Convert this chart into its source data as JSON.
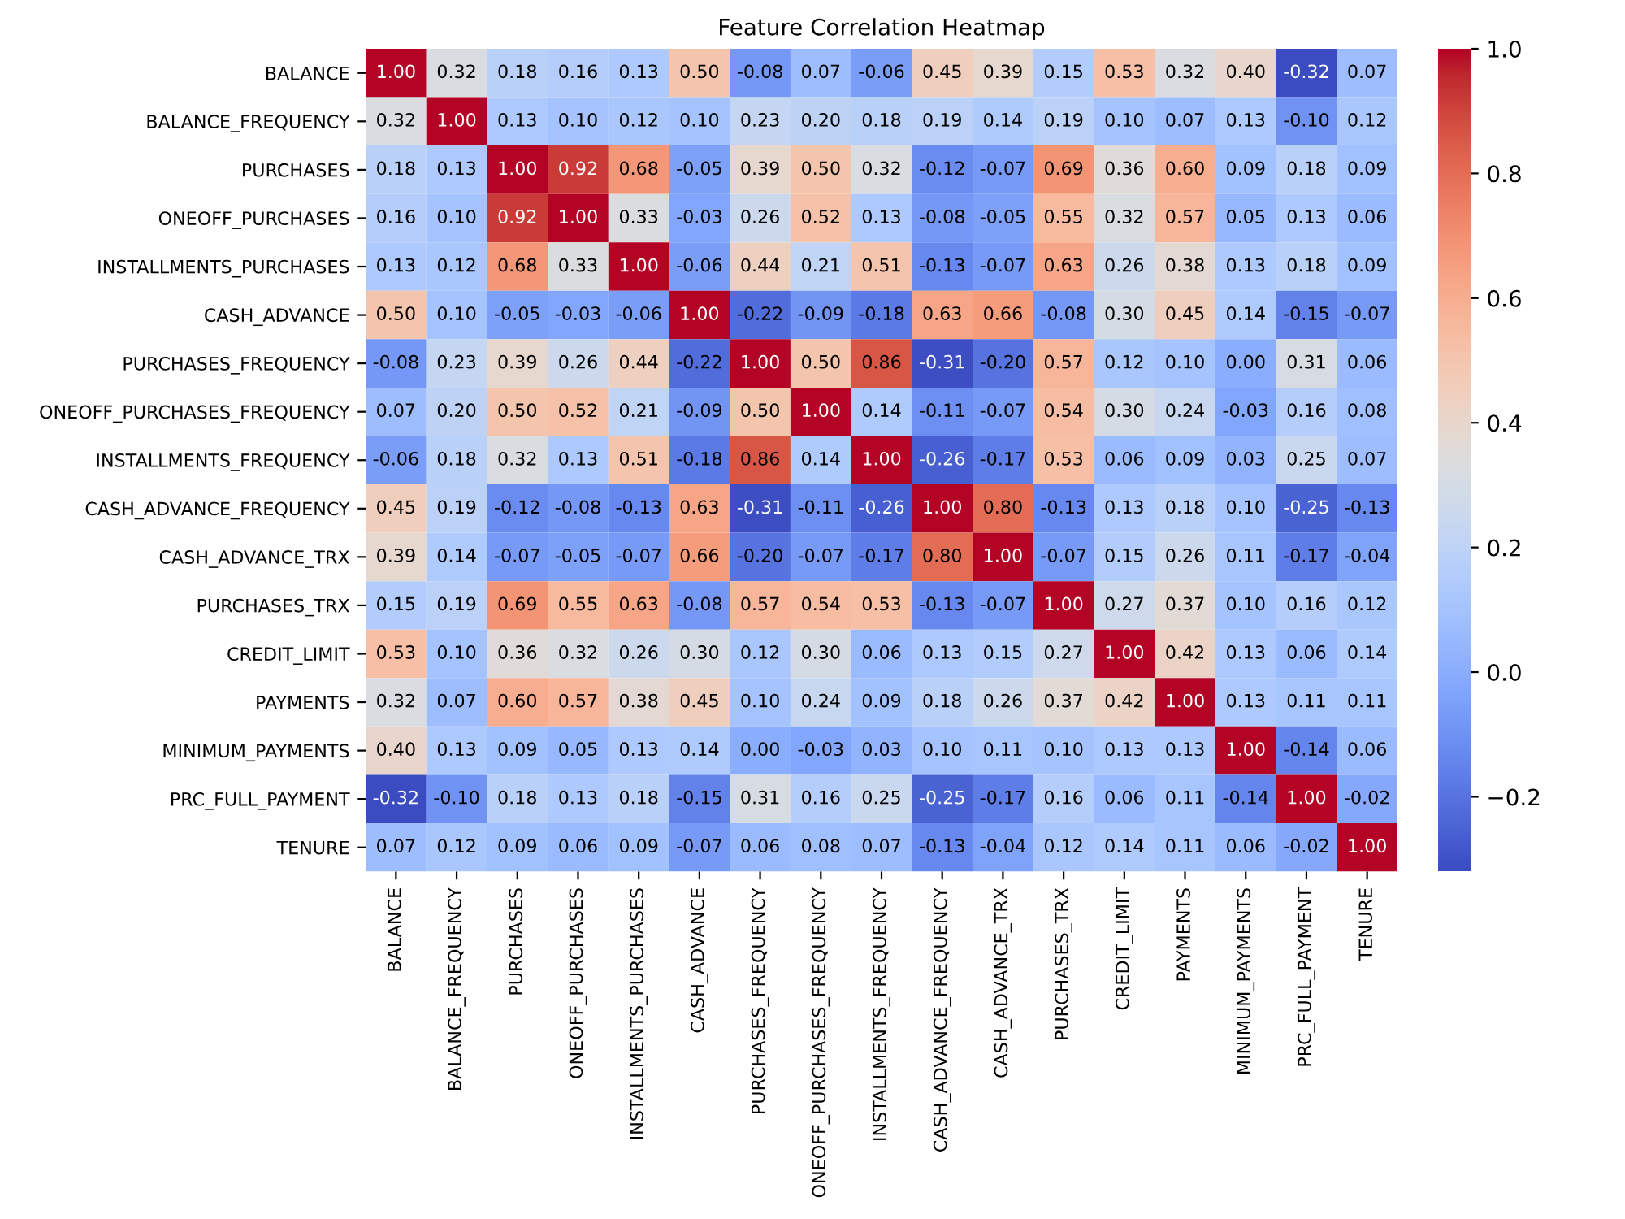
{
  "chart_data": {
    "type": "heatmap",
    "title": "Feature Correlation Heatmap",
    "categories": [
      "BALANCE",
      "BALANCE_FREQUENCY",
      "PURCHASES",
      "ONEOFF_PURCHASES",
      "INSTALLMENTS_PURCHASES",
      "CASH_ADVANCE",
      "PURCHASES_FREQUENCY",
      "ONEOFF_PURCHASES_FREQUENCY",
      "INSTALLMENTS_FREQUENCY",
      "CASH_ADVANCE_FREQUENCY",
      "CASH_ADVANCE_TRX",
      "PURCHASES_TRX",
      "CREDIT_LIMIT",
      "PAYMENTS",
      "MINIMUM_PAYMENTS",
      "PRC_FULL_PAYMENT",
      "TENURE"
    ],
    "y_categories": [
      "BALANCE",
      "BALANCE_FREQUENCY",
      "PURCHASES",
      "ONEOFF_PURCHASES",
      "INSTALLMENTS_PURCHASES",
      "CASH_ADVANCE",
      "PURCHASES_FREQUENCY",
      "ONEOFF_PURCHASES_FREQUENCY",
      "INSTALLMENTS_FREQUENCY",
      "CASH_ADVANCE_FREQUENCY",
      "CASH_ADVANCE_TRX",
      "PURCHASES_TRX",
      "CREDIT_LIMIT",
      "PAYMENTS",
      "MINIMUM_PAYMENTS",
      "PRC_FULL_PAYMENT",
      "TENURE"
    ],
    "cells": [
      [
        1.0,
        0.32,
        0.18,
        0.16,
        0.13,
        0.5,
        -0.08,
        0.07,
        -0.06,
        0.45,
        0.39,
        0.15,
        0.53,
        0.32,
        0.4,
        -0.32,
        0.07
      ],
      [
        0.32,
        1.0,
        0.13,
        0.1,
        0.12,
        0.1,
        0.23,
        0.2,
        0.18,
        0.19,
        0.14,
        0.19,
        0.1,
        0.07,
        0.13,
        -0.1,
        0.12
      ],
      [
        0.18,
        0.13,
        1.0,
        0.92,
        0.68,
        -0.05,
        0.39,
        0.5,
        0.32,
        -0.12,
        -0.07,
        0.69,
        0.36,
        0.6,
        0.09,
        0.18,
        0.09
      ],
      [
        0.16,
        0.1,
        0.92,
        1.0,
        0.33,
        -0.03,
        0.26,
        0.52,
        0.13,
        -0.08,
        -0.05,
        0.55,
        0.32,
        0.57,
        0.05,
        0.13,
        0.06
      ],
      [
        0.13,
        0.12,
        0.68,
        0.33,
        1.0,
        -0.06,
        0.44,
        0.21,
        0.51,
        -0.13,
        -0.07,
        0.63,
        0.26,
        0.38,
        0.13,
        0.18,
        0.09
      ],
      [
        0.5,
        0.1,
        -0.05,
        -0.03,
        -0.06,
        1.0,
        -0.22,
        -0.09,
        -0.18,
        0.63,
        0.66,
        -0.08,
        0.3,
        0.45,
        0.14,
        -0.15,
        -0.07
      ],
      [
        -0.08,
        0.23,
        0.39,
        0.26,
        0.44,
        -0.22,
        1.0,
        0.5,
        0.86,
        -0.31,
        -0.2,
        0.57,
        0.12,
        0.1,
        0.0,
        0.31,
        0.06
      ],
      [
        0.07,
        0.2,
        0.5,
        0.52,
        0.21,
        -0.09,
        0.5,
        1.0,
        0.14,
        -0.11,
        -0.07,
        0.54,
        0.3,
        0.24,
        -0.03,
        0.16,
        0.08
      ],
      [
        -0.06,
        0.18,
        0.32,
        0.13,
        0.51,
        -0.18,
        0.86,
        0.14,
        1.0,
        -0.26,
        -0.17,
        0.53,
        0.06,
        0.09,
        0.03,
        0.25,
        0.07
      ],
      [
        0.45,
        0.19,
        -0.12,
        -0.08,
        -0.13,
        0.63,
        -0.31,
        -0.11,
        -0.26,
        1.0,
        0.8,
        -0.13,
        0.13,
        0.18,
        0.1,
        -0.25,
        -0.13
      ],
      [
        0.39,
        0.14,
        -0.07,
        -0.05,
        -0.07,
        0.66,
        -0.2,
        -0.07,
        -0.17,
        0.8,
        1.0,
        -0.07,
        0.15,
        0.26,
        0.11,
        -0.17,
        -0.04
      ],
      [
        0.15,
        0.19,
        0.69,
        0.55,
        0.63,
        -0.08,
        0.57,
        0.54,
        0.53,
        -0.13,
        -0.07,
        1.0,
        0.27,
        0.37,
        0.1,
        0.16,
        0.12
      ],
      [
        0.53,
        0.1,
        0.36,
        0.32,
        0.26,
        0.3,
        0.12,
        0.3,
        0.06,
        0.13,
        0.15,
        0.27,
        1.0,
        0.42,
        0.13,
        0.06,
        0.14
      ],
      [
        0.32,
        0.07,
        0.6,
        0.57,
        0.38,
        0.45,
        0.1,
        0.24,
        0.09,
        0.18,
        0.26,
        0.37,
        0.42,
        1.0,
        0.13,
        0.11,
        0.11
      ],
      [
        0.4,
        0.13,
        0.09,
        0.05,
        0.13,
        0.14,
        0.0,
        -0.03,
        0.03,
        0.1,
        0.11,
        0.1,
        0.13,
        0.13,
        1.0,
        -0.14,
        0.06
      ],
      [
        -0.32,
        -0.1,
        0.18,
        0.13,
        0.18,
        -0.15,
        0.31,
        0.16,
        0.25,
        -0.25,
        -0.17,
        0.16,
        0.06,
        0.11,
        -0.14,
        1.0,
        -0.02
      ],
      [
        0.07,
        0.12,
        0.09,
        0.06,
        0.09,
        -0.07,
        0.06,
        0.08,
        0.07,
        -0.13,
        -0.04,
        0.12,
        0.14,
        0.11,
        0.06,
        -0.02,
        1.0
      ]
    ],
    "cell_labels": [
      [
        "1.00",
        "0.32",
        "0.18",
        "0.16",
        "0.13",
        "0.50",
        "-0.08",
        "0.07",
        "-0.06",
        "0.45",
        "0.39",
        "0.15",
        "0.53",
        "0.32",
        "0.40",
        "-0.32",
        "0.07"
      ],
      [
        "0.32",
        "1.00",
        "0.13",
        "0.10",
        "0.12",
        "0.10",
        "0.23",
        "0.20",
        "0.18",
        "0.19",
        "0.14",
        "0.19",
        "0.10",
        "0.07",
        "0.13",
        "-0.10",
        "0.12"
      ],
      [
        "0.18",
        "0.13",
        "1.00",
        "0.92",
        "0.68",
        "-0.05",
        "0.39",
        "0.50",
        "0.32",
        "-0.12",
        "-0.07",
        "0.69",
        "0.36",
        "0.60",
        "0.09",
        "0.18",
        "0.09"
      ],
      [
        "0.16",
        "0.10",
        "0.92",
        "1.00",
        "0.33",
        "-0.03",
        "0.26",
        "0.52",
        "0.13",
        "-0.08",
        "-0.05",
        "0.55",
        "0.32",
        "0.57",
        "0.05",
        "0.13",
        "0.06"
      ],
      [
        "0.13",
        "0.12",
        "0.68",
        "0.33",
        "1.00",
        "-0.06",
        "0.44",
        "0.21",
        "0.51",
        "-0.13",
        "-0.07",
        "0.63",
        "0.26",
        "0.38",
        "0.13",
        "0.18",
        "0.09"
      ],
      [
        "0.50",
        "0.10",
        "-0.05",
        "-0.03",
        "-0.06",
        "1.00",
        "-0.22",
        "-0.09",
        "-0.18",
        "0.63",
        "0.66",
        "-0.08",
        "0.30",
        "0.45",
        "0.14",
        "-0.15",
        "-0.07"
      ],
      [
        "-0.08",
        "0.23",
        "0.39",
        "0.26",
        "0.44",
        "-0.22",
        "1.00",
        "0.50",
        "0.86",
        "-0.31",
        "-0.20",
        "0.57",
        "0.12",
        "0.10",
        "0.00",
        "0.31",
        "0.06"
      ],
      [
        "0.07",
        "0.20",
        "0.50",
        "0.52",
        "0.21",
        "-0.09",
        "0.50",
        "1.00",
        "0.14",
        "-0.11",
        "-0.07",
        "0.54",
        "0.30",
        "0.24",
        "-0.03",
        "0.16",
        "0.08"
      ],
      [
        "-0.06",
        "0.18",
        "0.32",
        "0.13",
        "0.51",
        "-0.18",
        "0.86",
        "0.14",
        "1.00",
        "-0.26",
        "-0.17",
        "0.53",
        "0.06",
        "0.09",
        "0.03",
        "0.25",
        "0.07"
      ],
      [
        "0.45",
        "0.19",
        "-0.12",
        "-0.08",
        "-0.13",
        "0.63",
        "-0.31",
        "-0.11",
        "-0.26",
        "1.00",
        "0.80",
        "-0.13",
        "0.13",
        "0.18",
        "0.10",
        "-0.25",
        "-0.13"
      ],
      [
        "0.39",
        "0.14",
        "-0.07",
        "-0.05",
        "-0.07",
        "0.66",
        "-0.20",
        "-0.07",
        "-0.17",
        "0.80",
        "1.00",
        "-0.07",
        "0.15",
        "0.26",
        "0.11",
        "-0.17",
        "-0.04"
      ],
      [
        "0.15",
        "0.19",
        "0.69",
        "0.55",
        "0.63",
        "-0.08",
        "0.57",
        "0.54",
        "0.53",
        "-0.13",
        "-0.07",
        "1.00",
        "0.27",
        "0.37",
        "0.10",
        "0.16",
        "0.12"
      ],
      [
        "0.53",
        "0.10",
        "0.36",
        "0.32",
        "0.26",
        "0.30",
        "0.12",
        "0.30",
        "0.06",
        "0.13",
        "0.15",
        "0.27",
        "1.00",
        "0.42",
        "0.13",
        "0.06",
        "0.14"
      ],
      [
        "0.32",
        "0.07",
        "0.60",
        "0.57",
        "0.38",
        "0.45",
        "0.10",
        "0.24",
        "0.09",
        "0.18",
        "0.26",
        "0.37",
        "0.42",
        "1.00",
        "0.13",
        "0.11",
        "0.11"
      ],
      [
        "0.40",
        "0.13",
        "0.09",
        "0.05",
        "0.13",
        "0.14",
        "0.00",
        "-0.03",
        "0.03",
        "0.10",
        "0.11",
        "0.10",
        "0.13",
        "0.13",
        "1.00",
        "-0.14",
        "0.06"
      ],
      [
        "-0.32",
        "-0.10",
        "0.18",
        "0.13",
        "0.18",
        "-0.15",
        "0.31",
        "0.16",
        "0.25",
        "-0.25",
        "-0.17",
        "0.16",
        "0.06",
        "0.11",
        "-0.14",
        "1.00",
        "-0.02"
      ],
      [
        "0.07",
        "0.12",
        "0.09",
        "0.06",
        "0.09",
        "-0.07",
        "0.06",
        "0.08",
        "0.07",
        "-0.13",
        "-0.04",
        "0.12",
        "0.14",
        "0.11",
        "0.06",
        "-0.02",
        "1.00"
      ]
    ],
    "clim": [
      -0.32,
      1.0
    ],
    "cticks": [
      {
        "value": -0.2,
        "label": "−0.2"
      },
      {
        "value": 0.0,
        "label": "0.0"
      },
      {
        "value": 0.2,
        "label": "0.2"
      },
      {
        "value": 0.4,
        "label": "0.4"
      },
      {
        "value": 0.6,
        "label": "0.6"
      },
      {
        "value": 0.8,
        "label": "0.8"
      },
      {
        "value": 1.0,
        "label": "1.0"
      }
    ],
    "data_labels": true
  }
}
